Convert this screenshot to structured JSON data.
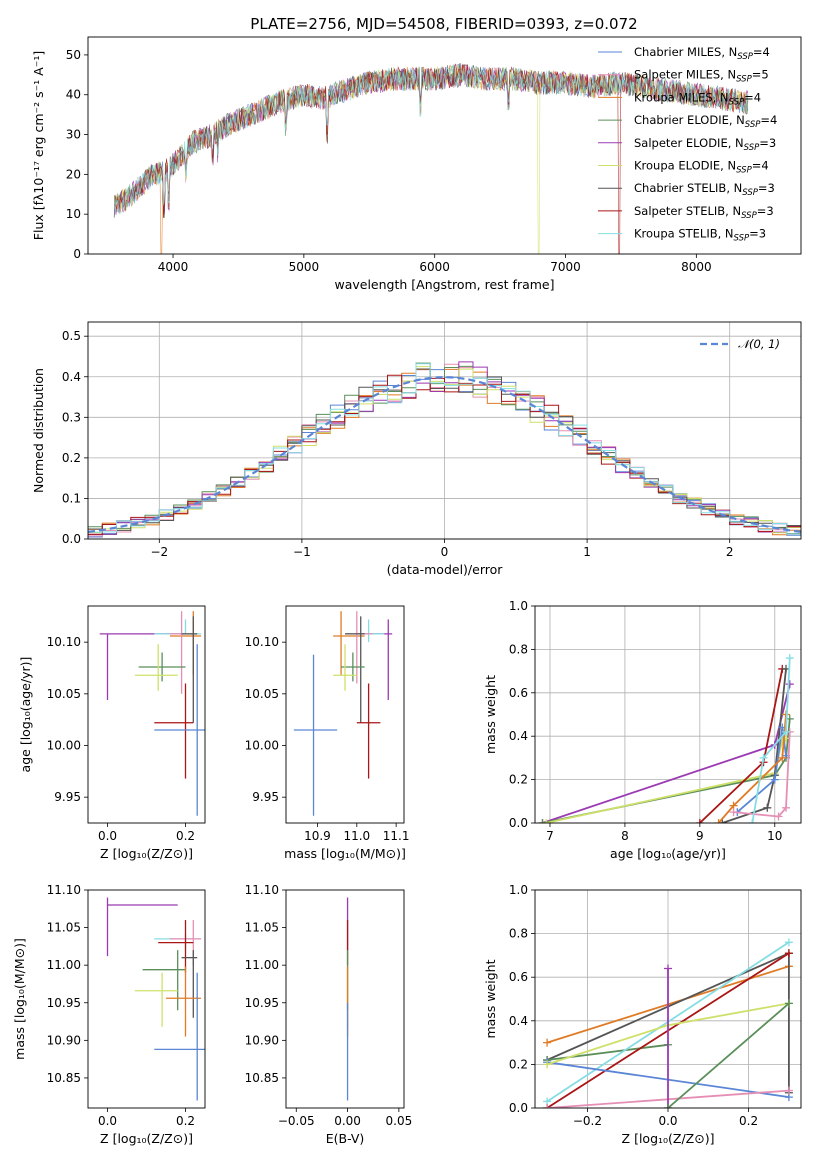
{
  "colors": {
    "blue": "#5b86d6",
    "orange": "#e07b25",
    "green": "#5a8f5a",
    "pink": "#e58fb5",
    "purple": "#9b3ab2",
    "yellow": "#cfe06a",
    "dark": "#555555",
    "red": "#aa1515",
    "cyan": "#85dde3"
  },
  "chart_data": [
    {
      "type": "line",
      "title": "PLATE=2756, MJD=54508, FIBERID=0393, z=0.072",
      "xlabel": "wavelength [Angstrom, rest frame]",
      "ylabel": "Flux [fλ10⁻¹⁷ erg cm⁻² s⁻¹ A⁻¹]",
      "xlim": [
        3350,
        8800
      ],
      "ylim": [
        0,
        54.5
      ],
      "xticks": [
        "4000",
        "5000",
        "6000",
        "7000",
        "8000"
      ],
      "yticks": [
        "0",
        "10",
        "20",
        "30",
        "40",
        "50"
      ],
      "legend_position": "right",
      "legend": [
        {
          "main": "Chabrier MILES, N",
          "sub": "SSP",
          "tail": "=4",
          "color": "blue"
        },
        {
          "main": "Salpeter MILES, N",
          "sub": "SSP",
          "tail": "=5",
          "color": "pink"
        },
        {
          "main": "Kroupa MILES, N",
          "sub": "SSP",
          "tail": "=4",
          "color": "orange"
        },
        {
          "main": "Chabrier ELODIE, N",
          "sub": "SSP",
          "tail": "=4",
          "color": "green"
        },
        {
          "main": "Salpeter ELODIE, N",
          "sub": "SSP",
          "tail": "=3",
          "color": "purple"
        },
        {
          "main": "Kroupa ELODIE, N",
          "sub": "SSP",
          "tail": "=4",
          "color": "yellow"
        },
        {
          "main": "Chabrier STELIB, N",
          "sub": "SSP",
          "tail": "=3",
          "color": "dark"
        },
        {
          "main": "Salpeter STELIB, N",
          "sub": "SSP",
          "tail": "=3",
          "color": "red"
        },
        {
          "main": "Kroupa STELIB, N",
          "sub": "SSP",
          "tail": "=3",
          "color": "cyan"
        }
      ],
      "continuum_nodes": [
        [
          3550,
          12
        ],
        [
          3650,
          14
        ],
        [
          3750,
          17
        ],
        [
          3850,
          20
        ],
        [
          3950,
          21
        ],
        [
          4050,
          24
        ],
        [
          4150,
          28
        ],
        [
          4300,
          30
        ],
        [
          4450,
          33
        ],
        [
          4600,
          35
        ],
        [
          4800,
          38
        ],
        [
          5000,
          40
        ],
        [
          5150,
          39
        ],
        [
          5300,
          41
        ],
        [
          5500,
          43
        ],
        [
          5700,
          44
        ],
        [
          5850,
          44
        ],
        [
          6000,
          44
        ],
        [
          6200,
          45
        ],
        [
          6400,
          44
        ],
        [
          6600,
          44
        ],
        [
          6800,
          43
        ],
        [
          7000,
          43
        ],
        [
          7200,
          42
        ],
        [
          7400,
          43
        ],
        [
          7600,
          42
        ],
        [
          7800,
          41
        ],
        [
          8000,
          40
        ],
        [
          8200,
          39
        ],
        [
          8400,
          38
        ]
      ]
    },
    {
      "type": "histogram",
      "xlabel": "(data-model)/error",
      "ylabel": "Normed distribution",
      "xlim": [
        -2.5,
        2.5
      ],
      "ylim": [
        0,
        0.535
      ],
      "xticks": [
        "−2",
        "−1",
        "0",
        "1",
        "2"
      ],
      "yticks": [
        "0.0",
        "0.1",
        "0.2",
        "0.3",
        "0.4",
        "0.5"
      ],
      "grid": true,
      "reference_curve": {
        "label": "𝒩(0, 1)",
        "mean": 0,
        "sigma": 1,
        "color": "#5b86d6"
      },
      "bins": 50
    },
    {
      "type": "errorbar",
      "xlabel": "Z [log₁₀(Z/Z⊙)]",
      "ylabel": "age  [log₁₀(age/yr)]",
      "xlim": [
        -0.05,
        0.25
      ],
      "ylim": [
        9.925,
        10.135
      ],
      "xticks": [
        "0.0",
        "0.2"
      ],
      "yticks": [
        "9.95",
        "10.00",
        "10.05",
        "10.10"
      ],
      "points": [
        {
          "color": "purple",
          "x": 0.0,
          "xlo": -0.02,
          "xhi": 0.2,
          "y": 10.108,
          "ylo": 10.044,
          "yhi": 10.108
        },
        {
          "color": "cyan",
          "x": 0.2,
          "xlo": 0.12,
          "xhi": 0.24,
          "y": 10.108,
          "ylo": 10.108,
          "yhi": 10.122
        },
        {
          "color": "orange",
          "x": 0.22,
          "xlo": 0.16,
          "xhi": 0.24,
          "y": 10.106,
          "ylo": 10.068,
          "yhi": 10.13
        },
        {
          "color": "pink",
          "x": 0.19,
          "xlo": 0.16,
          "xhi": 0.22,
          "y": 10.108,
          "ylo": 10.05,
          "yhi": 10.13
        },
        {
          "color": "dark",
          "x": 0.22,
          "xlo": 0.19,
          "xhi": 0.23,
          "y": 10.108,
          "ylo": 10.022,
          "yhi": 10.125
        },
        {
          "color": "green",
          "x": 0.14,
          "xlo": 0.08,
          "xhi": 0.2,
          "y": 10.076,
          "ylo": 10.062,
          "yhi": 10.09
        },
        {
          "color": "yellow",
          "x": 0.13,
          "xlo": 0.07,
          "xhi": 0.18,
          "y": 10.068,
          "ylo": 10.053,
          "yhi": 10.098
        },
        {
          "color": "red",
          "x": 0.2,
          "xlo": 0.12,
          "xhi": 0.22,
          "y": 10.022,
          "ylo": 9.968,
          "yhi": 10.06
        },
        {
          "color": "blue",
          "x": 0.23,
          "xlo": 0.12,
          "xhi": 0.25,
          "y": 10.015,
          "ylo": 9.932,
          "yhi": 10.098
        }
      ]
    },
    {
      "type": "errorbar",
      "xlabel": "mass [log₁₀(M/M⊙)]",
      "ylabel": "",
      "xlim": [
        10.82,
        11.12
      ],
      "ylim": [
        9.925,
        10.135
      ],
      "xticks": [
        "10.9",
        "11.0",
        "11.1"
      ],
      "yticks": [
        "9.95",
        "10.00",
        "10.05",
        "10.10"
      ],
      "points": [
        {
          "color": "purple",
          "x": 11.08,
          "xlo": 11.0,
          "xhi": 11.09,
          "y": 10.108,
          "ylo": 10.044,
          "yhi": 10.122
        },
        {
          "color": "cyan",
          "x": 11.03,
          "xlo": 10.97,
          "xhi": 11.07,
          "y": 10.108,
          "ylo": 10.1,
          "yhi": 10.122
        },
        {
          "color": "orange",
          "x": 10.96,
          "xlo": 10.94,
          "xhi": 11.02,
          "y": 10.106,
          "ylo": 10.068,
          "yhi": 10.13
        },
        {
          "color": "pink",
          "x": 11.0,
          "xlo": 10.97,
          "xhi": 11.04,
          "y": 10.108,
          "ylo": 10.06,
          "yhi": 10.13
        },
        {
          "color": "dark",
          "x": 11.01,
          "xlo": 10.97,
          "xhi": 11.02,
          "y": 10.108,
          "ylo": 10.022,
          "yhi": 10.125
        },
        {
          "color": "green",
          "x": 10.99,
          "xlo": 10.96,
          "xhi": 11.02,
          "y": 10.076,
          "ylo": 10.062,
          "yhi": 10.09
        },
        {
          "color": "yellow",
          "x": 10.97,
          "xlo": 10.94,
          "xhi": 11.0,
          "y": 10.068,
          "ylo": 10.053,
          "yhi": 10.098
        },
        {
          "color": "red",
          "x": 11.03,
          "xlo": 11.0,
          "xhi": 11.06,
          "y": 10.022,
          "ylo": 9.968,
          "yhi": 10.06
        },
        {
          "color": "blue",
          "x": 10.89,
          "xlo": 10.84,
          "xhi": 10.95,
          "y": 10.015,
          "ylo": 9.932,
          "yhi": 10.088
        }
      ]
    },
    {
      "type": "line",
      "xlabel": "age  [log₁₀(age/yr)]",
      "ylabel": "mass weight",
      "xlim": [
        6.8,
        10.35
      ],
      "ylim": [
        0,
        1.0
      ],
      "xticks": [
        "7",
        "8",
        "9",
        "10"
      ],
      "yticks": [
        "0.0",
        "0.2",
        "0.4",
        "0.6",
        "0.8",
        "1.0"
      ],
      "grid": true,
      "series": [
        {
          "color": "purple",
          "x": [
            6.9,
            10.0,
            10.2
          ],
          "y": [
            0.0,
            0.36,
            0.64
          ]
        },
        {
          "color": "green",
          "x": [
            6.9,
            10.0,
            10.15,
            10.2
          ],
          "y": [
            0.0,
            0.22,
            0.3,
            0.48
          ]
        },
        {
          "color": "yellow",
          "x": [
            6.95,
            10.0,
            10.1,
            10.15
          ],
          "y": [
            0.0,
            0.23,
            0.38,
            0.39
          ]
        },
        {
          "color": "red",
          "x": [
            9.0,
            9.85,
            10.1
          ],
          "y": [
            0.0,
            0.28,
            0.71
          ]
        },
        {
          "color": "dark",
          "x": [
            9.3,
            9.9,
            10.0,
            10.15
          ],
          "y": [
            0.0,
            0.07,
            0.22,
            0.71
          ]
        },
        {
          "color": "blue",
          "x": [
            9.5,
            10.0,
            10.1,
            10.15
          ],
          "y": [
            0.05,
            0.2,
            0.44,
            0.31
          ]
        },
        {
          "color": "orange",
          "x": [
            9.25,
            9.45,
            10.1,
            10.15
          ],
          "y": [
            0.0,
            0.08,
            0.3,
            0.5
          ]
        },
        {
          "color": "pink",
          "x": [
            9.45,
            10.05,
            10.15,
            10.2
          ],
          "y": [
            0.05,
            0.03,
            0.07,
            0.42
          ]
        },
        {
          "color": "cyan",
          "x": [
            9.7,
            9.85,
            10.15,
            10.2
          ],
          "y": [
            0.0,
            0.3,
            0.42,
            0.76
          ]
        }
      ]
    },
    {
      "type": "errorbar",
      "xlabel": "Z [log₁₀(Z/Z⊙)]",
      "ylabel": "mass [log₁₀(M/M⊙)]",
      "xlim": [
        -0.05,
        0.25
      ],
      "ylim": [
        10.81,
        11.1
      ],
      "xticks": [
        "0.0",
        "0.2"
      ],
      "yticks": [
        "10.85",
        "10.90",
        "10.95",
        "11.00",
        "11.05",
        "11.10"
      ],
      "points": [
        {
          "color": "purple",
          "x": 0.0,
          "xlo": 0.0,
          "xhi": 0.18,
          "y": 11.08,
          "ylo": 11.012,
          "yhi": 11.09
        },
        {
          "color": "cyan",
          "x": 0.2,
          "xlo": 0.12,
          "xhi": 0.24,
          "y": 11.035,
          "ylo": 11.02,
          "yhi": 11.04
        },
        {
          "color": "pink",
          "x": 0.22,
          "xlo": 0.16,
          "xhi": 0.24,
          "y": 11.035,
          "ylo": 11.0,
          "yhi": 11.06
        },
        {
          "color": "red",
          "x": 0.2,
          "xlo": 0.13,
          "xhi": 0.22,
          "y": 11.03,
          "ylo": 10.99,
          "yhi": 11.06
        },
        {
          "color": "dark",
          "x": 0.22,
          "xlo": 0.19,
          "xhi": 0.23,
          "y": 11.01,
          "ylo": 10.93,
          "yhi": 11.02
        },
        {
          "color": "green",
          "x": 0.18,
          "xlo": 0.09,
          "xhi": 0.2,
          "y": 10.994,
          "ylo": 10.94,
          "yhi": 11.02
        },
        {
          "color": "yellow",
          "x": 0.14,
          "xlo": 0.07,
          "xhi": 0.18,
          "y": 10.966,
          "ylo": 10.918,
          "yhi": 10.99
        },
        {
          "color": "orange",
          "x": 0.2,
          "xlo": 0.15,
          "xhi": 0.24,
          "y": 10.956,
          "ylo": 10.905,
          "yhi": 10.998
        },
        {
          "color": "blue",
          "x": 0.23,
          "xlo": 0.12,
          "xhi": 0.25,
          "y": 10.888,
          "ylo": 10.82,
          "yhi": 10.99
        }
      ]
    },
    {
      "type": "errorbar",
      "xlabel": "E(B-V)",
      "ylabel": "",
      "xlim": [
        -0.06,
        0.055
      ],
      "ylim": [
        10.81,
        11.1
      ],
      "xticks": [
        "−0.05",
        "0.00",
        "0.05"
      ],
      "yticks": [
        "10.85",
        "10.90",
        "10.95",
        "11.00",
        "11.05",
        "11.10"
      ],
      "points": [
        {
          "color": "purple",
          "x": 0.0,
          "xlo": 0.0,
          "xhi": 0.0,
          "y": 11.08,
          "ylo": 11.02,
          "yhi": 11.09
        },
        {
          "color": "red",
          "x": 0.0,
          "xlo": 0.0,
          "xhi": 0.0,
          "y": 11.03,
          "ylo": 11.0,
          "yhi": 11.06
        },
        {
          "color": "green",
          "x": 0.0,
          "xlo": 0.0,
          "xhi": 0.0,
          "y": 10.994,
          "ylo": 10.94,
          "yhi": 11.02
        },
        {
          "color": "yellow",
          "x": 0.0,
          "xlo": 0.0,
          "xhi": 0.0,
          "y": 10.966,
          "ylo": 10.918,
          "yhi": 10.99
        },
        {
          "color": "orange",
          "x": 0.0,
          "xlo": 0.0,
          "xhi": 0.0,
          "y": 10.956,
          "ylo": 10.905,
          "yhi": 10.998
        },
        {
          "color": "blue",
          "x": 0.0,
          "xlo": 0.0,
          "xhi": 0.0,
          "y": 10.888,
          "ylo": 10.82,
          "yhi": 10.95
        }
      ]
    },
    {
      "type": "line",
      "xlabel": "Z [log₁₀(Z/Z⊙)]",
      "ylabel": "mass weight",
      "xlim": [
        -0.33,
        0.33
      ],
      "ylim": [
        0,
        1.0
      ],
      "xticks": [
        "−0.2",
        "0.0",
        "0.2"
      ],
      "yticks": [
        "0.0",
        "0.2",
        "0.4",
        "0.6",
        "0.8",
        "1.0"
      ],
      "grid": true,
      "series": [
        {
          "color": "orange",
          "x": [
            -0.3,
            0.3
          ],
          "y": [
            0.3,
            0.65
          ]
        },
        {
          "color": "dark",
          "x": [
            -0.3,
            0.3,
            0.3
          ],
          "y": [
            0.22,
            0.71,
            0.07
          ]
        },
        {
          "color": "green",
          "x": [
            -0.3,
            0.0
          ],
          "y": [
            0.22,
            0.29
          ]
        },
        {
          "color": "cyan",
          "x": [
            -0.3,
            0.3
          ],
          "y": [
            0.03,
            0.76
          ]
        },
        {
          "color": "red",
          "x": [
            -0.3,
            0.3
          ],
          "y": [
            0.0,
            0.71
          ]
        },
        {
          "color": "blue",
          "x": [
            -0.3,
            0.3
          ],
          "y": [
            0.21,
            0.05
          ]
        },
        {
          "color": "pink",
          "x": [
            -0.3,
            0.3
          ],
          "y": [
            0.0,
            0.08
          ]
        },
        {
          "color": "yellow",
          "x": [
            -0.3,
            0.0,
            0.3
          ],
          "y": [
            0.2,
            0.38,
            0.48
          ]
        },
        {
          "color": "purple",
          "x": [
            0.0,
            0.0
          ],
          "y": [
            0.0,
            0.64
          ]
        },
        {
          "color": "green",
          "x": [
            0.0,
            0.3
          ],
          "y": [
            0.0,
            0.48
          ]
        }
      ]
    }
  ]
}
